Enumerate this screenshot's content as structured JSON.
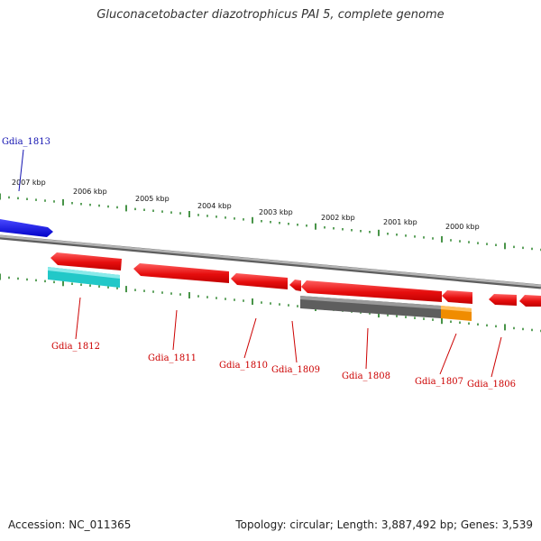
{
  "title": "Gluconacetobacter diazotrophicus PAI 5, complete genome",
  "footer": {
    "accession": "Accession: NC_011365",
    "topology": "Topology: circular; Length: 3,887,492 bp; Genes: 3,539"
  },
  "colors": {
    "backbone": "#8a8a8a",
    "tick_green": "#1a7a1a",
    "forward_gene": "#1010e6",
    "reverse_gene": "#e60e0e",
    "rna_cyan": "#22c8c8",
    "cds_gray": "#666666",
    "cds_orange": "#f08c00",
    "forward_label": "#1010b0",
    "reverse_label": "#cc0000"
  },
  "scale_labels": [
    "2007 kbp",
    "2006 kbp",
    "2005 kbp",
    "2004 kbp",
    "2003 kbp",
    "2002 kbp",
    "2001 kbp",
    "2000 kbp"
  ],
  "genes": [
    {
      "name": "Gdia_1813",
      "strand": "forward"
    },
    {
      "name": "Gdia_1812",
      "strand": "reverse"
    },
    {
      "name": "Gdia_1811",
      "strand": "reverse"
    },
    {
      "name": "Gdia_1810",
      "strand": "reverse"
    },
    {
      "name": "Gdia_1809",
      "strand": "reverse"
    },
    {
      "name": "Gdia_1808",
      "strand": "reverse"
    },
    {
      "name": "Gdia_1807",
      "strand": "reverse"
    },
    {
      "name": "Gdia_1806",
      "strand": "reverse"
    }
  ]
}
